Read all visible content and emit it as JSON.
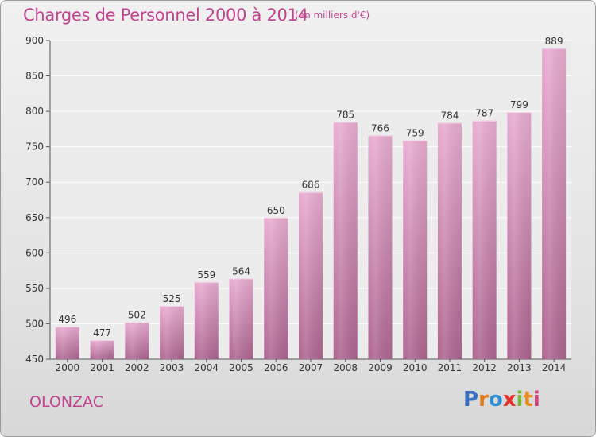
{
  "header": {
    "title": "Charges de Personnel 2000 à 2014",
    "unit": "(en milliers d'€)"
  },
  "footer": {
    "commune": "OLONZAC",
    "logo_text": "Proxiti"
  },
  "colors": {
    "accent": "#c0448e",
    "bar_top": "#e6a9cd",
    "bar_bottom": "#b0648f"
  },
  "chart_data": {
    "type": "bar",
    "title": "Charges de Personnel 2000 à 2014",
    "subtitle": "(en milliers d'€)",
    "xlabel": "",
    "ylabel": "",
    "categories": [
      "2000",
      "2001",
      "2002",
      "2003",
      "2004",
      "2005",
      "2006",
      "2007",
      "2008",
      "2009",
      "2010",
      "2011",
      "2012",
      "2013",
      "2014"
    ],
    "values": [
      496,
      477,
      502,
      525,
      559,
      564,
      650,
      686,
      785,
      766,
      759,
      784,
      787,
      799,
      889
    ],
    "ylim": [
      450,
      900
    ],
    "yticks": [
      450,
      500,
      550,
      600,
      650,
      700,
      750,
      800,
      850,
      900
    ],
    "grid": true,
    "legend": "none"
  }
}
